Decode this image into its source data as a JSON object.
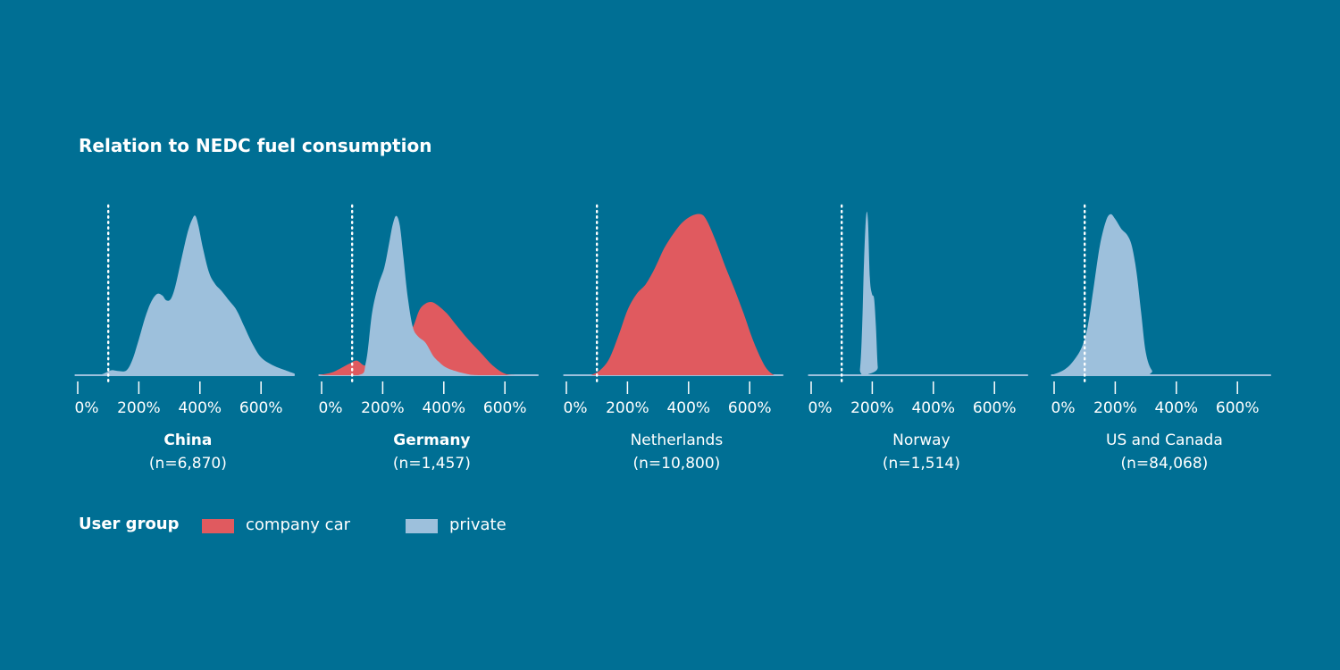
{
  "title": "Relation to NEDC fuel consumption",
  "legend": {
    "title": "User group",
    "items": [
      {
        "label": "company car",
        "color": "#e05a5f"
      },
      {
        "label": "private",
        "color": "#9dc0dc"
      }
    ]
  },
  "chart_data": [
    {
      "type": "area",
      "panel": "China",
      "label_bold": true,
      "name": "China",
      "n_label": "(n=6,870)",
      "xlim": [
        -10,
        710
      ],
      "x_ticks": [
        0,
        200,
        400,
        600
      ],
      "x_tick_labels": [
        "0%",
        "200%",
        "400%",
        "600%"
      ],
      "reference_line_x": 100,
      "series": [
        {
          "group": "private",
          "points": [
            [
              -10,
              0.0
            ],
            [
              60,
              0.0
            ],
            [
              85,
              0.01
            ],
            [
              110,
              0.03
            ],
            [
              135,
              0.025
            ],
            [
              160,
              0.03
            ],
            [
              180,
              0.1
            ],
            [
              200,
              0.22
            ],
            [
              220,
              0.35
            ],
            [
              240,
              0.45
            ],
            [
              260,
              0.5
            ],
            [
              277,
              0.49
            ],
            [
              290,
              0.46
            ],
            [
              305,
              0.47
            ],
            [
              320,
              0.55
            ],
            [
              340,
              0.72
            ],
            [
              360,
              0.88
            ],
            [
              375,
              0.96
            ],
            [
              385,
              0.98
            ],
            [
              395,
              0.92
            ],
            [
              410,
              0.78
            ],
            [
              430,
              0.63
            ],
            [
              450,
              0.56
            ],
            [
              470,
              0.52
            ],
            [
              495,
              0.46
            ],
            [
              520,
              0.4
            ],
            [
              545,
              0.3
            ],
            [
              570,
              0.2
            ],
            [
              600,
              0.11
            ],
            [
              640,
              0.06
            ],
            [
              680,
              0.03
            ],
            [
              710,
              0.01
            ]
          ]
        }
      ]
    },
    {
      "type": "area",
      "panel": "Germany",
      "label_bold": true,
      "name": "Germany",
      "n_label": "(n=1,457)",
      "xlim": [
        -10,
        710
      ],
      "x_ticks": [
        0,
        200,
        400,
        600
      ],
      "x_tick_labels": [
        "0%",
        "200%",
        "400%",
        "600%"
      ],
      "reference_line_x": 100,
      "series": [
        {
          "group": "company car",
          "points": [
            [
              -10,
              0.0
            ],
            [
              30,
              0.015
            ],
            [
              60,
              0.04
            ],
            [
              90,
              0.07
            ],
            [
              115,
              0.09
            ],
            [
              140,
              0.06
            ],
            [
              160,
              0.08
            ],
            [
              180,
              0.12
            ],
            [
              200,
              0.12
            ],
            [
              220,
              0.11
            ],
            [
              240,
              0.14
            ],
            [
              260,
              0.2
            ],
            [
              280,
              0.24
            ],
            [
              300,
              0.3
            ],
            [
              320,
              0.4
            ],
            [
              340,
              0.44
            ],
            [
              360,
              0.45
            ],
            [
              380,
              0.43
            ],
            [
              410,
              0.38
            ],
            [
              440,
              0.31
            ],
            [
              480,
              0.22
            ],
            [
              520,
              0.14
            ],
            [
              560,
              0.06
            ],
            [
              600,
              0.01
            ],
            [
              640,
              0.0
            ],
            [
              710,
              0.0
            ]
          ]
        },
        {
          "group": "private",
          "points": [
            [
              -10,
              0.0
            ],
            [
              120,
              0.0
            ],
            [
              145,
              0.08
            ],
            [
              165,
              0.38
            ],
            [
              185,
              0.55
            ],
            [
              205,
              0.66
            ],
            [
              220,
              0.8
            ],
            [
              232,
              0.92
            ],
            [
              244,
              0.98
            ],
            [
              256,
              0.92
            ],
            [
              268,
              0.72
            ],
            [
              282,
              0.48
            ],
            [
              298,
              0.3
            ],
            [
              315,
              0.24
            ],
            [
              340,
              0.2
            ],
            [
              365,
              0.12
            ],
            [
              385,
              0.08
            ],
            [
              405,
              0.05
            ],
            [
              430,
              0.03
            ],
            [
              470,
              0.01
            ],
            [
              520,
              0.0
            ],
            [
              710,
              0.0
            ]
          ]
        }
      ]
    },
    {
      "type": "area",
      "panel": "Netherlands",
      "label_bold": false,
      "name": "Netherlands",
      "n_label": "(n=10,800)",
      "xlim": [
        -10,
        710
      ],
      "x_ticks": [
        0,
        200,
        400,
        600
      ],
      "x_tick_labels": [
        "0%",
        "200%",
        "400%",
        "600%"
      ],
      "reference_line_x": 100,
      "series": [
        {
          "group": "company car",
          "points": [
            [
              80,
              0.0
            ],
            [
              110,
              0.03
            ],
            [
              140,
              0.1
            ],
            [
              170,
              0.24
            ],
            [
              200,
              0.4
            ],
            [
              230,
              0.5
            ],
            [
              260,
              0.56
            ],
            [
              290,
              0.66
            ],
            [
              320,
              0.78
            ],
            [
              350,
              0.87
            ],
            [
              380,
              0.94
            ],
            [
              410,
              0.98
            ],
            [
              440,
              0.99
            ],
            [
              460,
              0.95
            ],
            [
              490,
              0.82
            ],
            [
              520,
              0.67
            ],
            [
              550,
              0.53
            ],
            [
              580,
              0.38
            ],
            [
              610,
              0.22
            ],
            [
              640,
              0.09
            ],
            [
              660,
              0.03
            ],
            [
              680,
              0.0
            ]
          ]
        }
      ]
    },
    {
      "type": "area",
      "panel": "Norway",
      "label_bold": false,
      "name": "Norway",
      "n_label": "(n=1,514)",
      "xlim": [
        -10,
        710
      ],
      "x_ticks": [
        0,
        200,
        400,
        600
      ],
      "x_tick_labels": [
        "0%",
        "200%",
        "400%",
        "600%"
      ],
      "reference_line_x": 100,
      "series": [
        {
          "group": "private",
          "points": [
            [
              -10,
              0.0
            ],
            [
              150,
              0.0
            ],
            [
              160,
              0.04
            ],
            [
              167,
              0.3
            ],
            [
              173,
              0.7
            ],
            [
              180,
              0.98
            ],
            [
              186,
              0.95
            ],
            [
              192,
              0.6
            ],
            [
              199,
              0.5
            ],
            [
              206,
              0.47
            ],
            [
              212,
              0.3
            ],
            [
              218,
              0.05
            ],
            [
              225,
              0.0
            ],
            [
              710,
              0.0
            ]
          ]
        }
      ]
    },
    {
      "type": "area",
      "panel": "US and Canada",
      "label_bold": false,
      "name": "US and Canada",
      "n_label": "(n=84,068)",
      "xlim": [
        -10,
        710
      ],
      "x_ticks": [
        0,
        200,
        400,
        600
      ],
      "x_tick_labels": [
        "0%",
        "200%",
        "400%",
        "600%"
      ],
      "reference_line_x": 100,
      "series": [
        {
          "group": "private",
          "points": [
            [
              -10,
              0.0
            ],
            [
              30,
              0.03
            ],
            [
              60,
              0.08
            ],
            [
              90,
              0.17
            ],
            [
              110,
              0.3
            ],
            [
              130,
              0.55
            ],
            [
              150,
              0.8
            ],
            [
              170,
              0.95
            ],
            [
              185,
              0.99
            ],
            [
              200,
              0.96
            ],
            [
              220,
              0.9
            ],
            [
              240,
              0.86
            ],
            [
              255,
              0.79
            ],
            [
              270,
              0.63
            ],
            [
              285,
              0.38
            ],
            [
              300,
              0.14
            ],
            [
              320,
              0.03
            ],
            [
              350,
              0.0
            ],
            [
              710,
              0.0
            ]
          ]
        }
      ]
    }
  ]
}
